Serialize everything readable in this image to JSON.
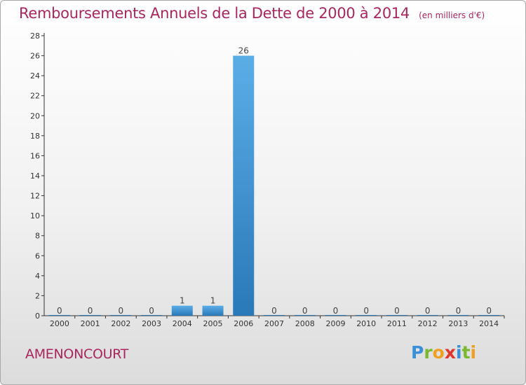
{
  "title": "Remboursements Annuels de la Dette de 2000 à 2014",
  "units": "(en milliers d'€)",
  "commune": "AMENONCOURT",
  "logo": {
    "text": "Proxiti",
    "letters": [
      {
        "ch": "P",
        "color": "#3a8fd8"
      },
      {
        "ch": "r",
        "color": "#7cb82f"
      },
      {
        "ch": "o",
        "color": "#f0a020"
      },
      {
        "ch": "x",
        "color": "#e0352b"
      },
      {
        "ch": "i",
        "color": "#3a8fd8"
      },
      {
        "ch": "t",
        "color": "#7cb82f"
      },
      {
        "ch": "i",
        "color": "#f0a020"
      }
    ]
  },
  "colors": {
    "title": "#a8265e",
    "bar_top": "#5aaee6",
    "bar_bottom": "#2a78b8",
    "axis": "#333333"
  },
  "chart_data": {
    "type": "bar",
    "title": "Remboursements Annuels de la Dette de 2000 à 2014",
    "categories": [
      "2000",
      "2001",
      "2002",
      "2003",
      "2004",
      "2005",
      "2006",
      "2007",
      "2008",
      "2009",
      "2010",
      "2011",
      "2012",
      "2013",
      "2014"
    ],
    "values": [
      0,
      0,
      0,
      0,
      1,
      1,
      26,
      0,
      0,
      0,
      0,
      0,
      0,
      0,
      0
    ],
    "data_labels": [
      "0",
      "0",
      "0",
      "0",
      "1",
      "1",
      "26",
      "0",
      "0",
      "0",
      "0",
      "0",
      "0",
      "0",
      "0"
    ],
    "y_ticks": [
      0,
      2,
      4,
      6,
      8,
      10,
      12,
      14,
      16,
      18,
      20,
      22,
      24,
      26,
      28
    ],
    "ylim": [
      0,
      28
    ],
    "xlabel": "",
    "ylabel": "",
    "grid": false,
    "legend": "none"
  }
}
